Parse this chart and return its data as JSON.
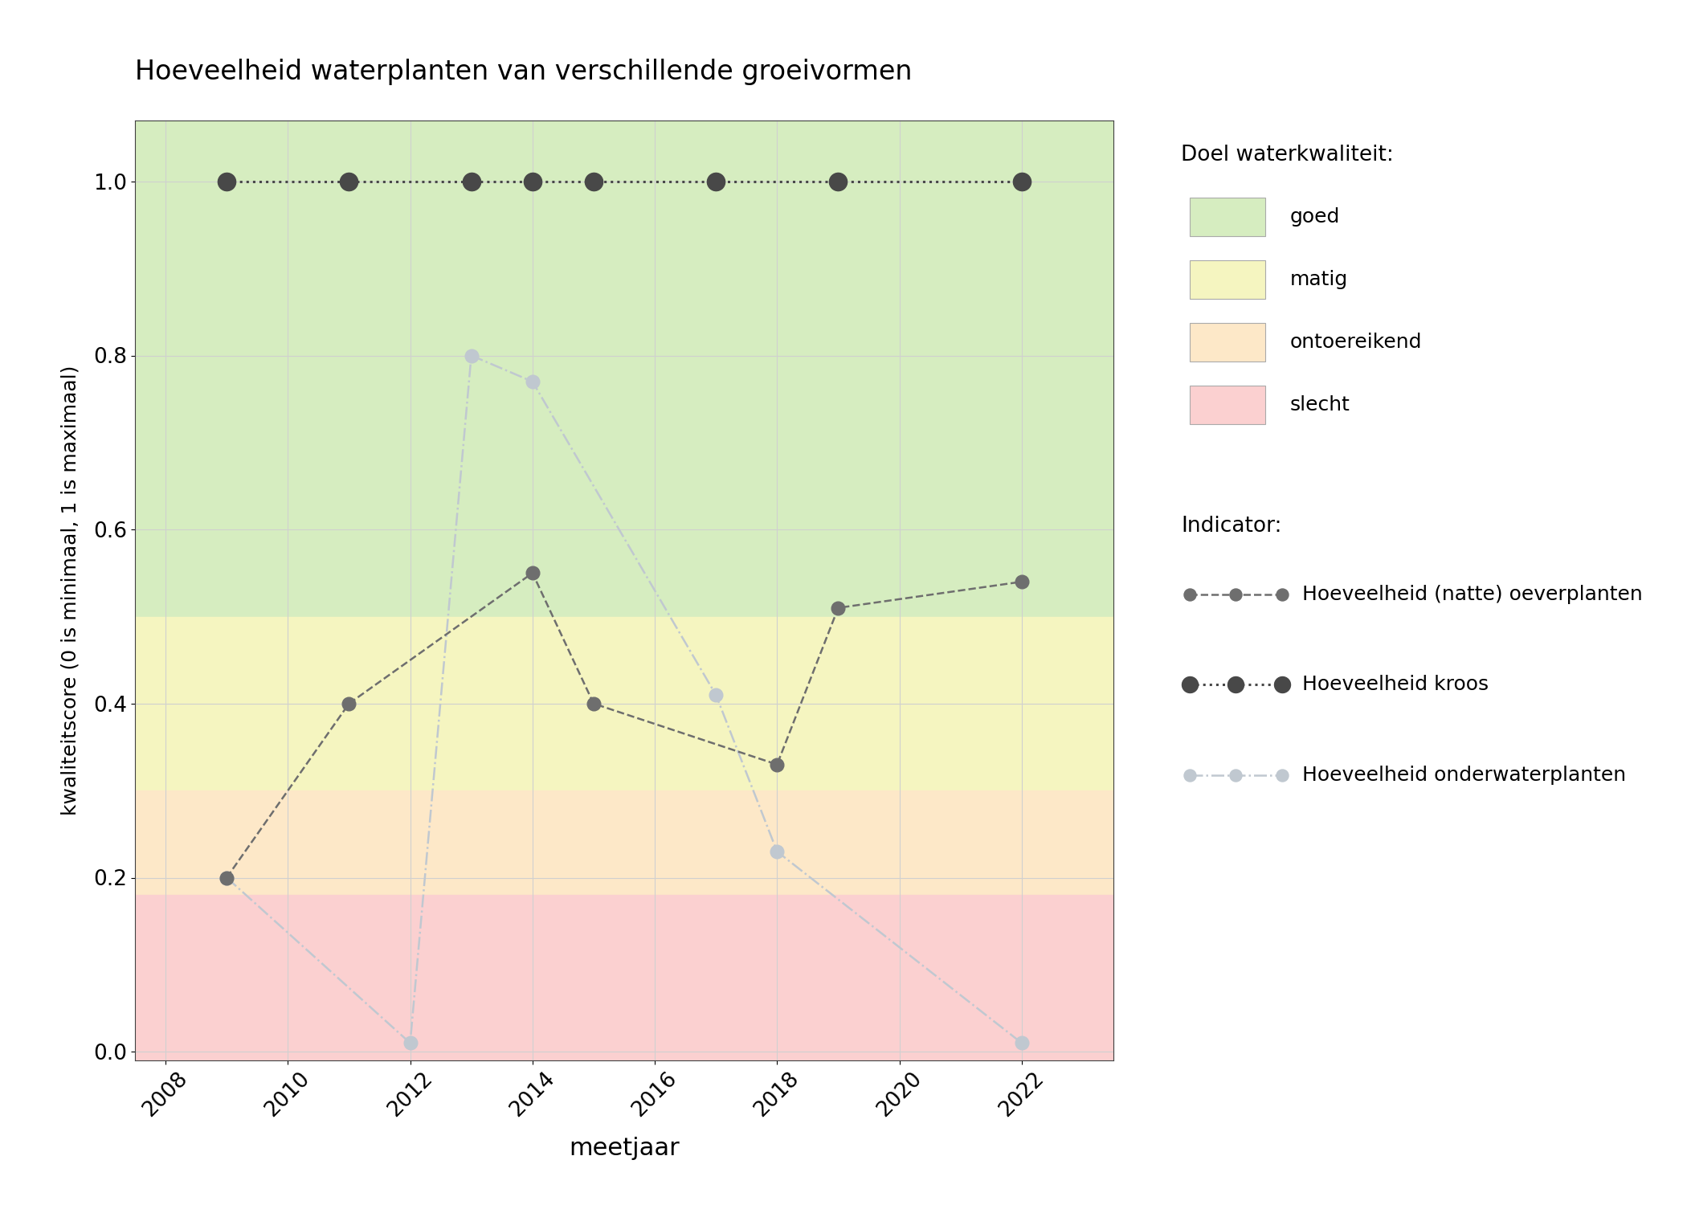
{
  "title": "Hoeveelheid waterplanten van verschillende groeivormen",
  "xlabel": "meetjaar",
  "ylabel": "kwaliteitscore (0 is minimaal, 1 is maximaal)",
  "xlim": [
    2007.5,
    2023.5
  ],
  "ylim": [
    -0.01,
    1.07
  ],
  "bg_colors": [
    {
      "name": "goed",
      "ymin": 0.5,
      "ymax": 1.1,
      "color": "#d6edc0"
    },
    {
      "name": "matig",
      "ymin": 0.3,
      "ymax": 0.5,
      "color": "#f5f5c0"
    },
    {
      "name": "ontoereikend",
      "ymin": 0.18,
      "ymax": 0.3,
      "color": "#fde8c8"
    },
    {
      "name": "slecht",
      "ymin": -0.1,
      "ymax": 0.18,
      "color": "#fbd0d0"
    }
  ],
  "series": {
    "oeverplanten": {
      "label": "Hoeveelheid (natte) oeverplanten",
      "color": "#6e6e6e",
      "linestyle": "--",
      "marker": "o",
      "markersize": 12,
      "linewidth": 1.8,
      "x": [
        2009,
        2011,
        2014,
        2015,
        2018,
        2019,
        2022
      ],
      "y": [
        0.2,
        0.4,
        0.55,
        0.4,
        0.33,
        0.51,
        0.54
      ]
    },
    "kroos": {
      "label": "Hoeveelheid kroos",
      "color": "#484848",
      "linestyle": ":",
      "marker": "o",
      "markersize": 16,
      "linewidth": 2.2,
      "x": [
        2009,
        2011,
        2013,
        2014,
        2015,
        2017,
        2019,
        2022
      ],
      "y": [
        1.0,
        1.0,
        1.0,
        1.0,
        1.0,
        1.0,
        1.0,
        1.0
      ]
    },
    "onderwaterplanten": {
      "label": "Hoeveelheid onderwaterplanten",
      "color": "#c0c8d0",
      "linestyle": "-.",
      "marker": "o",
      "markersize": 12,
      "linewidth": 1.8,
      "x": [
        2009,
        2012,
        2013,
        2014,
        2017,
        2018,
        2022
      ],
      "y": [
        0.2,
        0.01,
        0.8,
        0.77,
        0.41,
        0.23,
        0.01
      ]
    }
  },
  "legend_title_bg": "Doel waterkwaliteit:",
  "legend_title_indicator": "Indicator:",
  "bg_legend_labels": [
    "goed",
    "matig",
    "ontoereikend",
    "slecht"
  ],
  "bg_legend_colors": [
    "#d6edc0",
    "#f5f5c0",
    "#fde8c8",
    "#fbd0d0"
  ],
  "xticks": [
    2008,
    2010,
    2012,
    2014,
    2016,
    2018,
    2020,
    2022
  ],
  "yticks": [
    0.0,
    0.2,
    0.4,
    0.6,
    0.8,
    1.0
  ],
  "background_color": "#ffffff",
  "grid_color": "#d0d0d0",
  "figsize": [
    21.0,
    15.0
  ],
  "dpi": 100
}
